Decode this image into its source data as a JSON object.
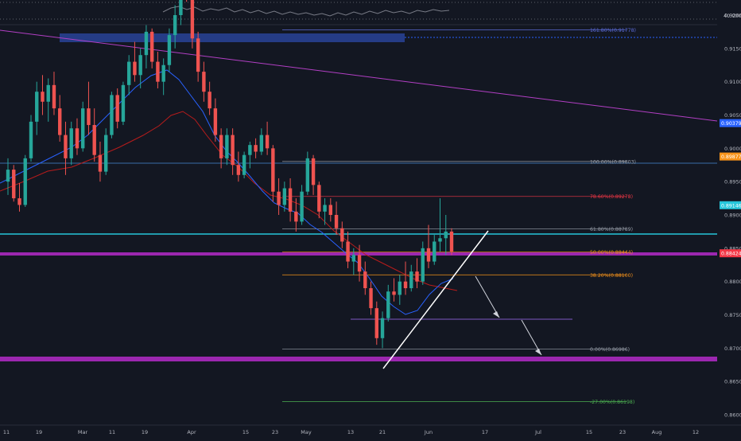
{
  "chart_data": {
    "type": "candlestick",
    "instrument_note": "",
    "y_axis": {
      "range": [
        0.8585,
        0.9285
      ],
      "ticks": [
        "0.92000",
        "0.91500",
        "0.91000",
        "0.90500",
        "0.90000",
        "0.89500",
        "0.89000",
        "0.88500",
        "0.88000",
        "0.87500",
        "0.87000",
        "0.86500",
        "0.86000"
      ],
      "tick_values": [
        0.92,
        0.915,
        0.91,
        0.905,
        0.9,
        0.895,
        0.89,
        0.885,
        0.88,
        0.875,
        0.87,
        0.865,
        0.86
      ]
    },
    "x_axis": {
      "ticks": [
        "11",
        "19",
        "Mar",
        "11",
        "19",
        "Apr",
        "15",
        "23",
        "May",
        "13",
        "21",
        "Jun",
        "17",
        "Jul",
        "15",
        "23",
        "Aug",
        "12"
      ]
    },
    "indicator_panel": {
      "label": "40.0000"
    },
    "price_tags": [
      {
        "label": "0.92510",
        "value": 0.9251,
        "color": "#2962ff"
      },
      {
        "label": "0.90379",
        "value": 0.90379,
        "color": "#2962ff"
      },
      {
        "label": "0.89877",
        "value": 0.89877,
        "color": "#f7931a"
      },
      {
        "label": "0.89146",
        "value": 0.89146,
        "color": "#26c6da"
      },
      {
        "label": "0.88424",
        "value": 0.88424,
        "color": "#f23645"
      }
    ],
    "fibonacci": [
      {
        "label": "161.80%(0.91778)",
        "value": 0.91778,
        "color": "#5b6bd8"
      },
      {
        "label": "100.00%(0.89803)",
        "value": 0.89803,
        "color": "#9aa0ab"
      },
      {
        "label": "78.60%(0.89278)",
        "value": 0.89278,
        "color": "#f23645"
      },
      {
        "label": "61.80%(0.88789)",
        "value": 0.88789,
        "color": "#9aa0ab"
      },
      {
        "label": "50.00%(0.88444)",
        "value": 0.88444,
        "color": "#f7931a"
      },
      {
        "label": "38.20%(0.88100)",
        "value": 0.881,
        "color": "#f7931a"
      },
      {
        "label": "0.00%(0.86986)",
        "value": 0.86986,
        "color": "#9aa0ab"
      },
      {
        "label": "-27.00%(0.86198)",
        "value": 0.86198,
        "color": "#4caf50"
      }
    ],
    "candles": [
      {
        "o": 0.895,
        "h": 0.8985,
        "l": 0.893,
        "c": 0.8968
      },
      {
        "o": 0.8968,
        "h": 0.8975,
        "l": 0.892,
        "c": 0.8925
      },
      {
        "o": 0.8925,
        "h": 0.8948,
        "l": 0.8905,
        "c": 0.8915
      },
      {
        "o": 0.8915,
        "h": 0.899,
        "l": 0.8912,
        "c": 0.8985
      },
      {
        "o": 0.8985,
        "h": 0.905,
        "l": 0.898,
        "c": 0.904
      },
      {
        "o": 0.904,
        "h": 0.91,
        "l": 0.902,
        "c": 0.9085
      },
      {
        "o": 0.9085,
        "h": 0.911,
        "l": 0.905,
        "c": 0.907
      },
      {
        "o": 0.907,
        "h": 0.9105,
        "l": 0.904,
        "c": 0.9095
      },
      {
        "o": 0.9095,
        "h": 0.9115,
        "l": 0.905,
        "c": 0.906
      },
      {
        "o": 0.906,
        "h": 0.908,
        "l": 0.901,
        "c": 0.902
      },
      {
        "o": 0.902,
        "h": 0.904,
        "l": 0.896,
        "c": 0.8985
      },
      {
        "o": 0.8985,
        "h": 0.904,
        "l": 0.8975,
        "c": 0.903
      },
      {
        "o": 0.903,
        "h": 0.9045,
        "l": 0.899,
        "c": 0.9
      },
      {
        "o": 0.9,
        "h": 0.907,
        "l": 0.8995,
        "c": 0.906
      },
      {
        "o": 0.906,
        "h": 0.91,
        "l": 0.902,
        "c": 0.9035
      },
      {
        "o": 0.9035,
        "h": 0.906,
        "l": 0.898,
        "c": 0.899
      },
      {
        "o": 0.899,
        "h": 0.901,
        "l": 0.895,
        "c": 0.8965
      },
      {
        "o": 0.8965,
        "h": 0.903,
        "l": 0.896,
        "c": 0.902
      },
      {
        "o": 0.902,
        "h": 0.9085,
        "l": 0.9015,
        "c": 0.908
      },
      {
        "o": 0.908,
        "h": 0.909,
        "l": 0.903,
        "c": 0.904
      },
      {
        "o": 0.904,
        "h": 0.91,
        "l": 0.9035,
        "c": 0.9095
      },
      {
        "o": 0.9095,
        "h": 0.914,
        "l": 0.908,
        "c": 0.913
      },
      {
        "o": 0.913,
        "h": 0.916,
        "l": 0.91,
        "c": 0.911
      },
      {
        "o": 0.911,
        "h": 0.915,
        "l": 0.909,
        "c": 0.914
      },
      {
        "o": 0.914,
        "h": 0.9185,
        "l": 0.912,
        "c": 0.9175
      },
      {
        "o": 0.9175,
        "h": 0.918,
        "l": 0.912,
        "c": 0.913
      },
      {
        "o": 0.913,
        "h": 0.9145,
        "l": 0.909,
        "c": 0.91
      },
      {
        "o": 0.91,
        "h": 0.9135,
        "l": 0.908,
        "c": 0.9125
      },
      {
        "o": 0.9125,
        "h": 0.918,
        "l": 0.9115,
        "c": 0.917
      },
      {
        "o": 0.917,
        "h": 0.9215,
        "l": 0.915,
        "c": 0.92
      },
      {
        "o": 0.92,
        "h": 0.927,
        "l": 0.9185,
        "c": 0.926
      },
      {
        "o": 0.926,
        "h": 0.9275,
        "l": 0.922,
        "c": 0.924
      },
      {
        "o": 0.924,
        "h": 0.9255,
        "l": 0.915,
        "c": 0.9165
      },
      {
        "o": 0.9165,
        "h": 0.9175,
        "l": 0.91,
        "c": 0.9115
      },
      {
        "o": 0.9115,
        "h": 0.913,
        "l": 0.907,
        "c": 0.9085
      },
      {
        "o": 0.9085,
        "h": 0.91,
        "l": 0.905,
        "c": 0.906
      },
      {
        "o": 0.906,
        "h": 0.9075,
        "l": 0.901,
        "c": 0.902
      },
      {
        "o": 0.902,
        "h": 0.903,
        "l": 0.897,
        "c": 0.8985
      },
      {
        "o": 0.8985,
        "h": 0.903,
        "l": 0.8975,
        "c": 0.902
      },
      {
        "o": 0.902,
        "h": 0.903,
        "l": 0.896,
        "c": 0.8975
      },
      {
        "o": 0.8975,
        "h": 0.8995,
        "l": 0.895,
        "c": 0.896
      },
      {
        "o": 0.896,
        "h": 0.8995,
        "l": 0.8955,
        "c": 0.899
      },
      {
        "o": 0.899,
        "h": 0.901,
        "l": 0.897,
        "c": 0.9005
      },
      {
        "o": 0.9005,
        "h": 0.9015,
        "l": 0.8985,
        "c": 0.8995
      },
      {
        "o": 0.8995,
        "h": 0.903,
        "l": 0.899,
        "c": 0.902
      },
      {
        "o": 0.902,
        "h": 0.904,
        "l": 0.899,
        "c": 0.9
      },
      {
        "o": 0.9,
        "h": 0.9005,
        "l": 0.892,
        "c": 0.8935
      },
      {
        "o": 0.8935,
        "h": 0.8955,
        "l": 0.89,
        "c": 0.8915
      },
      {
        "o": 0.8915,
        "h": 0.895,
        "l": 0.8905,
        "c": 0.894
      },
      {
        "o": 0.894,
        "h": 0.8955,
        "l": 0.889,
        "c": 0.8905
      },
      {
        "o": 0.8905,
        "h": 0.8925,
        "l": 0.8875,
        "c": 0.889
      },
      {
        "o": 0.889,
        "h": 0.8945,
        "l": 0.8885,
        "c": 0.8935
      },
      {
        "o": 0.8935,
        "h": 0.8995,
        "l": 0.893,
        "c": 0.8985
      },
      {
        "o": 0.8985,
        "h": 0.899,
        "l": 0.893,
        "c": 0.8945
      },
      {
        "o": 0.8945,
        "h": 0.895,
        "l": 0.8895,
        "c": 0.8905
      },
      {
        "o": 0.8905,
        "h": 0.8925,
        "l": 0.8885,
        "c": 0.8915
      },
      {
        "o": 0.8915,
        "h": 0.8925,
        "l": 0.889,
        "c": 0.89
      },
      {
        "o": 0.89,
        "h": 0.892,
        "l": 0.887,
        "c": 0.888
      },
      {
        "o": 0.888,
        "h": 0.889,
        "l": 0.885,
        "c": 0.886
      },
      {
        "o": 0.886,
        "h": 0.8875,
        "l": 0.882,
        "c": 0.883
      },
      {
        "o": 0.883,
        "h": 0.885,
        "l": 0.881,
        "c": 0.884
      },
      {
        "o": 0.884,
        "h": 0.8855,
        "l": 0.88,
        "c": 0.8815
      },
      {
        "o": 0.8815,
        "h": 0.883,
        "l": 0.878,
        "c": 0.879
      },
      {
        "o": 0.879,
        "h": 0.88,
        "l": 0.875,
        "c": 0.876
      },
      {
        "o": 0.876,
        "h": 0.877,
        "l": 0.8705,
        "c": 0.8715
      },
      {
        "o": 0.8715,
        "h": 0.8755,
        "l": 0.87,
        "c": 0.8745
      },
      {
        "o": 0.8745,
        "h": 0.8795,
        "l": 0.874,
        "c": 0.8785
      },
      {
        "o": 0.8785,
        "h": 0.8805,
        "l": 0.877,
        "c": 0.878
      },
      {
        "o": 0.878,
        "h": 0.881,
        "l": 0.8765,
        "c": 0.88
      },
      {
        "o": 0.88,
        "h": 0.883,
        "l": 0.878,
        "c": 0.879
      },
      {
        "o": 0.879,
        "h": 0.8825,
        "l": 0.8785,
        "c": 0.8815
      },
      {
        "o": 0.8815,
        "h": 0.8835,
        "l": 0.879,
        "c": 0.88
      },
      {
        "o": 0.88,
        "h": 0.886,
        "l": 0.8795,
        "c": 0.885
      },
      {
        "o": 0.885,
        "h": 0.8885,
        "l": 0.882,
        "c": 0.883
      },
      {
        "o": 0.883,
        "h": 0.887,
        "l": 0.8825,
        "c": 0.886
      },
      {
        "o": 0.886,
        "h": 0.8925,
        "l": 0.8845,
        "c": 0.8865
      },
      {
        "o": 0.8865,
        "h": 0.89,
        "l": 0.884,
        "c": 0.8875
      },
      {
        "o": 0.8875,
        "h": 0.888,
        "l": 0.884,
        "c": 0.8845
      }
    ]
  }
}
